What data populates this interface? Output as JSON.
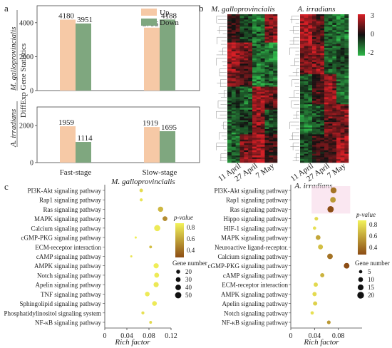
{
  "panel_letters": {
    "a": "a",
    "b": "b",
    "c": "c"
  },
  "colors": {
    "up": "#f6c9a6",
    "down": "#7fa77f",
    "heat_low": "#2fb84a",
    "heat_mid": "#111111",
    "heat_high": "#d81f26",
    "dot_low": "#8c4d15",
    "dot_high": "#f2f25a",
    "bubble_bg": "#f7d7e8"
  },
  "chart_data": [
    {
      "type": "bar",
      "panel": "a",
      "title": "M. galloprovincialis",
      "ylabel": "DiffExp Gene Statistics",
      "categories": [
        "Fast-stage",
        "Slow-stage"
      ],
      "series": [
        {
          "name": "Up",
          "values": [
            4180,
            3706
          ]
        },
        {
          "name": "Down",
          "values": [
            3951,
            4188
          ]
        }
      ],
      "ylim": [
        0,
        5000
      ],
      "yticks": [
        "0",
        "2000",
        "4000"
      ],
      "legend": "top-right"
    },
    {
      "type": "bar",
      "panel": "a",
      "title": "A. irradians",
      "categories": [
        "Fast-stage",
        "Slow-stage"
      ],
      "series": [
        {
          "name": "Up",
          "values": [
            1959,
            1919
          ]
        },
        {
          "name": "Down",
          "values": [
            1114,
            1695
          ]
        }
      ],
      "ylim": [
        0,
        3000
      ],
      "yticks": [
        "0",
        "2000"
      ]
    },
    {
      "type": "heatmap",
      "panel": "b",
      "title": "M. galloprovincialis",
      "columns": [
        "11 April",
        "27 April",
        "7 May"
      ],
      "colorbar": {
        "max": "3",
        "mid": "0",
        "min": "-2"
      }
    },
    {
      "type": "heatmap",
      "panel": "b",
      "title": "A. irradians",
      "columns": [
        "11 April",
        "27 April",
        "7 May"
      ]
    },
    {
      "type": "scatter",
      "panel": "c",
      "title": "M. galloprovincialis",
      "xlabel": "Rich factor",
      "xlim": [
        0,
        0.12
      ],
      "xticks": [
        "0",
        "0.04",
        "0.08",
        "0.12"
      ],
      "categories": [
        "PI3K-Akt signaling pathway",
        "Rap1 signaling pathway",
        "Ras signaling pathway",
        "MAPK signaling pathway",
        "Calcium signaling pathway",
        "cGMP-PKG signaling pathway",
        "ECM-receptor interaction",
        "cAMP signaling pathway",
        "AMPK signaling pathway",
        "Notch signaling pathway",
        "Apelin signaling pathway",
        "TNF signaling pathway",
        "Sphingolipid signaling pathway",
        "Phosphatidylinositol signaling system",
        "NF-κB signaling pathway"
      ],
      "rich_factor": [
        0.066,
        0.066,
        0.101,
        0.109,
        0.095,
        0.056,
        0.083,
        0.048,
        0.093,
        0.094,
        0.093,
        0.077,
        0.09,
        0.069,
        0.083
      ],
      "p_value": [
        0.86,
        0.9,
        0.72,
        0.55,
        0.92,
        0.94,
        0.75,
        0.9,
        0.93,
        0.92,
        0.91,
        0.92,
        0.92,
        0.88,
        0.85
      ],
      "gene_number": [
        16,
        12,
        36,
        30,
        48,
        6,
        10,
        6,
        34,
        30,
        34,
        28,
        28,
        12,
        10
      ],
      "color_legend": {
        "title": "p-value",
        "ticks": [
          "0.8",
          "0.6",
          "0.4"
        ]
      },
      "size_legend": {
        "title": "Gene number",
        "ticks": [
          20,
          30,
          40,
          50
        ]
      }
    },
    {
      "type": "scatter",
      "panel": "c",
      "title": "A. irradians",
      "xlabel": "Rich factor",
      "xlim": [
        0,
        0.12
      ],
      "xticks": [
        "0",
        "0.04",
        "0.08"
      ],
      "categories": [
        "PI3K-Akt signaling pathway",
        "Rap1 signaling pathway",
        "Ras signaling pathway",
        "Hippo signaling pathway",
        "HIF-1 signaling pathway",
        "MAPK signaling pathway",
        "Neuroactive ligand-receptor.",
        "Calcium signaling pathway",
        "cGMP-PKG signaling pathway",
        "cAMP signaling pathway",
        "ECM-receptor interaction",
        "AMPK signaling pathway",
        "Apelin signaling pathway",
        "Notch signaling pathway",
        "NF-κB signaling pathway"
      ],
      "rich_factor": [
        0.072,
        0.071,
        0.067,
        0.043,
        0.04,
        0.046,
        0.05,
        0.066,
        0.094,
        0.053,
        0.042,
        0.04,
        0.041,
        0.036,
        0.064
      ],
      "p_value": [
        0.45,
        0.6,
        0.3,
        0.85,
        0.88,
        0.65,
        0.75,
        0.45,
        0.3,
        0.7,
        0.85,
        0.86,
        0.82,
        0.88,
        0.6
      ],
      "gene_number": [
        16,
        14,
        18,
        6,
        5,
        10,
        11,
        14,
        14,
        8,
        8,
        8,
        8,
        5,
        6
      ],
      "color_legend": {
        "title": "p-value",
        "ticks": [
          "0.8",
          "0.6",
          "0.4"
        ]
      },
      "size_legend": {
        "title": "Gene number",
        "ticks": [
          5,
          10,
          15,
          20
        ]
      }
    }
  ]
}
